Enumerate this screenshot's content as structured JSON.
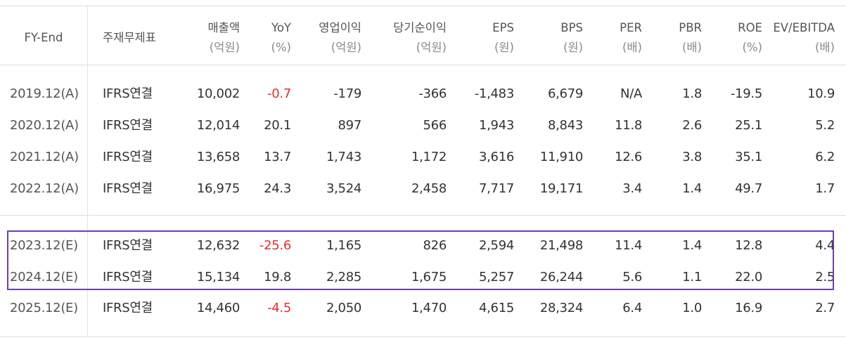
{
  "header": {
    "fy_end": "FY-End",
    "standard": "주재무제표",
    "columns": [
      {
        "line1": "매출액",
        "line2": "(억원)"
      },
      {
        "line1": "YoY",
        "line2": "(%)"
      },
      {
        "line1": "영업이익",
        "line2": "(억원)"
      },
      {
        "line1": "당기순이익",
        "line2": "(억원)"
      },
      {
        "line1": "EPS",
        "line2": "(원)"
      },
      {
        "line1": "BPS",
        "line2": "(원)"
      },
      {
        "line1": "PER",
        "line2": "(배)"
      },
      {
        "line1": "PBR",
        "line2": "(배)"
      },
      {
        "line1": "ROE",
        "line2": "(%)"
      },
      {
        "line1": "EV/EBITDA",
        "line2": "(배)"
      }
    ]
  },
  "rows": [
    {
      "fy": "2019.12(A)",
      "std": "IFRS연결",
      "vals": [
        "10,002",
        "-0.7",
        "-179",
        "-366",
        "-1,483",
        "6,679",
        "N/A",
        "1.8",
        "-19.5",
        "10.9"
      ],
      "yoy_negative": true
    },
    {
      "fy": "2020.12(A)",
      "std": "IFRS연결",
      "vals": [
        "12,014",
        "20.1",
        "897",
        "566",
        "1,943",
        "8,843",
        "11.8",
        "2.6",
        "25.1",
        "5.2"
      ],
      "yoy_negative": false
    },
    {
      "fy": "2021.12(A)",
      "std": "IFRS연결",
      "vals": [
        "13,658",
        "13.7",
        "1,743",
        "1,172",
        "3,616",
        "11,910",
        "12.6",
        "3.8",
        "35.1",
        "6.2"
      ],
      "yoy_negative": false
    },
    {
      "fy": "2022.12(A)",
      "std": "IFRS연결",
      "vals": [
        "16,975",
        "24.3",
        "3,524",
        "2,458",
        "7,717",
        "19,171",
        "3.4",
        "1.4",
        "49.7",
        "1.7"
      ],
      "yoy_negative": false
    },
    {
      "fy": "2023.12(E)",
      "std": "IFRS연결",
      "vals": [
        "12,632",
        "-25.6",
        "1,165",
        "826",
        "2,594",
        "21,498",
        "11.4",
        "1.4",
        "12.8",
        "4.4"
      ],
      "yoy_negative": true
    },
    {
      "fy": "2024.12(E)",
      "std": "IFRS연결",
      "vals": [
        "15,134",
        "19.8",
        "2,285",
        "1,675",
        "5,257",
        "26,244",
        "5.6",
        "1.1",
        "22.0",
        "2.5"
      ],
      "yoy_negative": false
    },
    {
      "fy": "2025.12(E)",
      "std": "IFRS연결",
      "vals": [
        "14,460",
        "-4.5",
        "2,050",
        "1,470",
        "4,615",
        "28,324",
        "6.4",
        "1.0",
        "16.9",
        "2.7"
      ],
      "yoy_negative": true
    }
  ],
  "colors": {
    "negative": "#e62e2e",
    "highlight_box": "#6b3fb6",
    "text": "#333333",
    "header_text": "#555555",
    "rule": "#dddddd"
  }
}
